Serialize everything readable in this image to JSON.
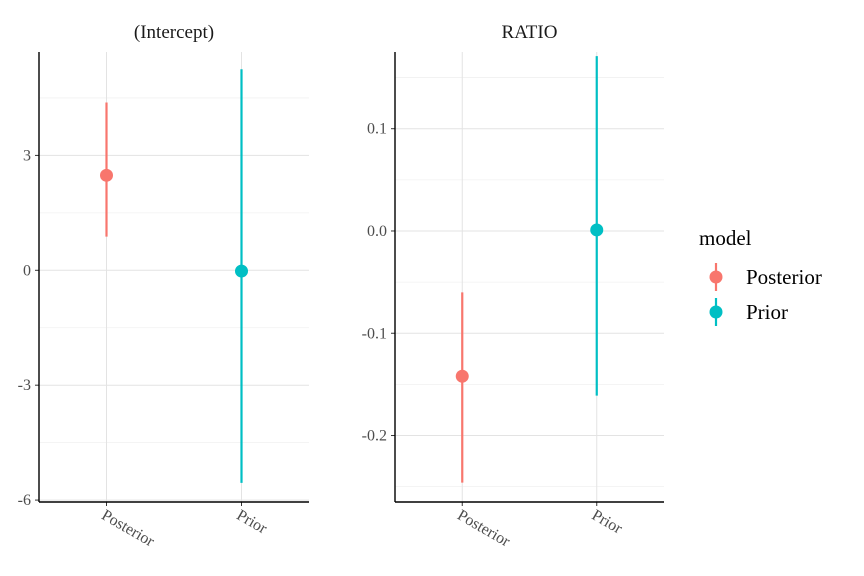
{
  "chart_data": [
    {
      "type": "pointrange",
      "title": "(Intercept)",
      "categories": [
        "Posterior",
        "Prior"
      ],
      "ylim": [
        -6.05,
        5.7
      ],
      "yticks": [
        -6,
        -3,
        0,
        3
      ],
      "ytick_labels": [
        "-6",
        "-3",
        "0",
        "3"
      ],
      "grid": true,
      "points": [
        {
          "category": "Posterior",
          "model": "Posterior",
          "y": 2.48,
          "low": 0.88,
          "high": 4.38
        },
        {
          "category": "Prior",
          "model": "Prior",
          "y": -0.02,
          "low": -5.55,
          "high": 5.25
        }
      ]
    },
    {
      "type": "pointrange",
      "title": "RATIO",
      "categories": [
        "Posterior",
        "Prior"
      ],
      "ylim": [
        -0.265,
        0.175
      ],
      "yticks": [
        -0.2,
        -0.1,
        0.0,
        0.1
      ],
      "ytick_labels": [
        "-0.2",
        "-0.1",
        "0.0",
        "0.1"
      ],
      "grid": true,
      "points": [
        {
          "category": "Posterior",
          "model": "Posterior",
          "y": -0.142,
          "low": -0.246,
          "high": -0.06
        },
        {
          "category": "Prior",
          "model": "Prior",
          "y": 0.001,
          "low": -0.161,
          "high": 0.171
        }
      ]
    }
  ],
  "legend": {
    "title": "model",
    "position": "right",
    "items": [
      {
        "label": "Posterior",
        "color": "#F8766D"
      },
      {
        "label": "Prior",
        "color": "#00BFC4"
      }
    ]
  }
}
